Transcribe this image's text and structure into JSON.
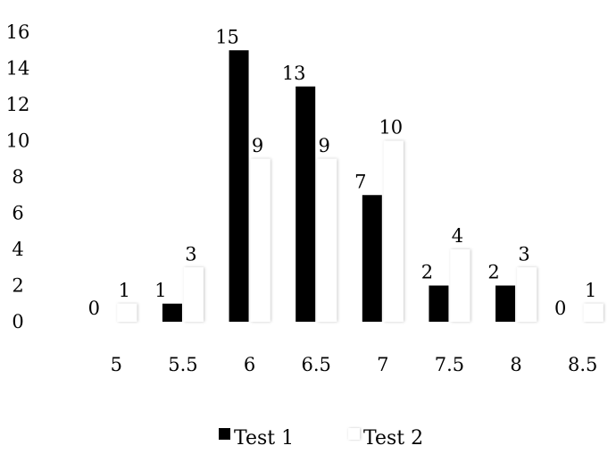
{
  "chart_data": {
    "type": "bar",
    "categories": [
      "5",
      "5.5",
      "6",
      "6.5",
      "7",
      "7.5",
      "8",
      "8.5"
    ],
    "series": [
      {
        "name": "Test 1",
        "values": [
          0,
          1,
          15,
          13,
          7,
          2,
          2,
          0
        ],
        "color": "#000000"
      },
      {
        "name": "Test 2",
        "values": [
          1,
          3,
          9,
          9,
          10,
          4,
          3,
          1
        ],
        "color": "#ffffff"
      }
    ],
    "y_ticks": [
      "0",
      "2",
      "4",
      "6",
      "8",
      "10",
      "12",
      "14",
      "16"
    ],
    "ylim": [
      0,
      16
    ],
    "grid": false,
    "legend_position": "bottom",
    "title": "",
    "xlabel": "",
    "ylabel": ""
  }
}
